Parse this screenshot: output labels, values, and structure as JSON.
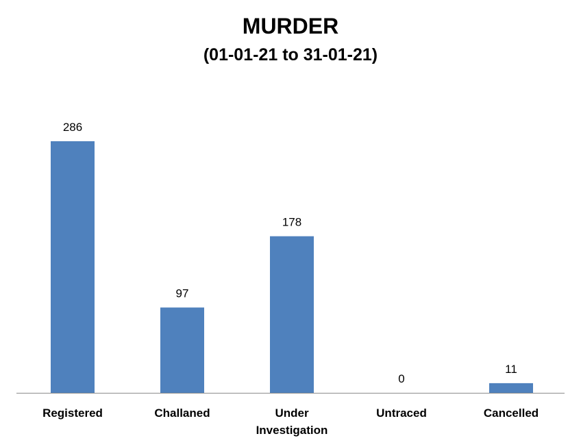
{
  "chart_data": {
    "type": "bar",
    "title": "MURDER",
    "subtitle": "(01-01-21 to 31-01-21)",
    "categories": [
      "Registered",
      "Challaned",
      "Under Investigation",
      "Untraced",
      "Cancelled"
    ],
    "values": [
      286,
      97,
      178,
      0,
      11
    ],
    "ylim": [
      0,
      286
    ],
    "grid": false,
    "bar_color": "#4F81BD",
    "axis_color": "#8C8C8C",
    "xlabel": "",
    "ylabel": ""
  }
}
